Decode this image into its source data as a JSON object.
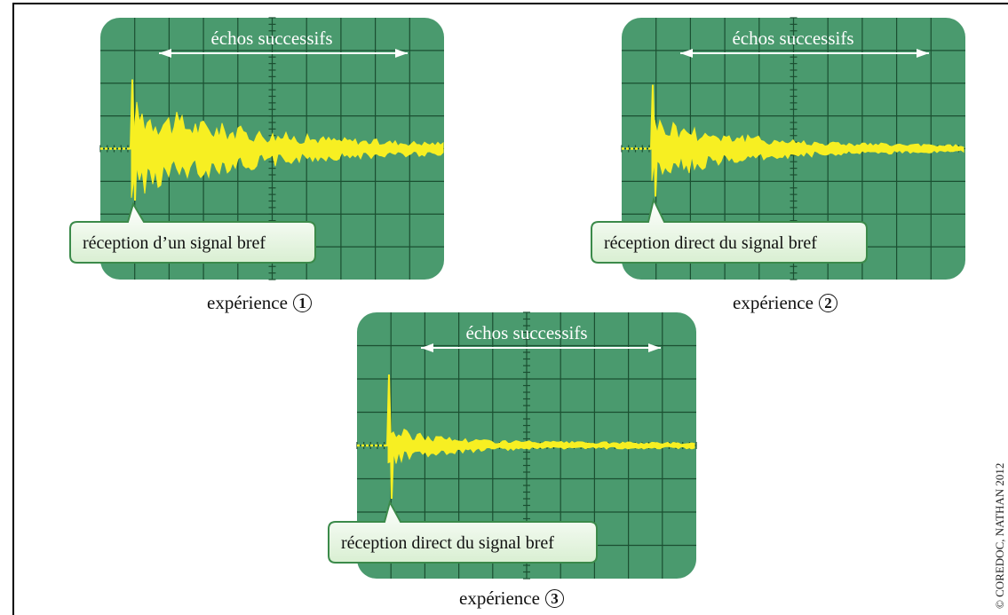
{
  "panels": [
    {
      "id": "1",
      "echo_label": "échos successifs",
      "callout": "réception d’un signal bref",
      "caption_word": "expérience",
      "caption_number": "1",
      "decay": 2.6,
      "spike": 78,
      "base_amp": 44
    },
    {
      "id": "2",
      "echo_label": "échos successifs",
      "callout": "réception direct du signal bref",
      "caption_word": "expérience",
      "caption_number": "2",
      "decay": 3.6,
      "spike": 72,
      "base_amp": 30
    },
    {
      "id": "3",
      "echo_label": "échos successifs",
      "callout": "réception direct du signal bref",
      "caption_word": "expérience",
      "caption_number": "3",
      "decay": 5.5,
      "spike": 80,
      "base_amp": 16
    }
  ],
  "colors": {
    "screen": "#4a9a6e",
    "grid": "#1b4f31",
    "signal": "#f7ef22",
    "callout_top": "#ffffff",
    "callout_bottom": "#d9efd2",
    "callout_border": "#3b8a4a"
  },
  "copyright": "© COREDOC, NATHAN 2012"
}
